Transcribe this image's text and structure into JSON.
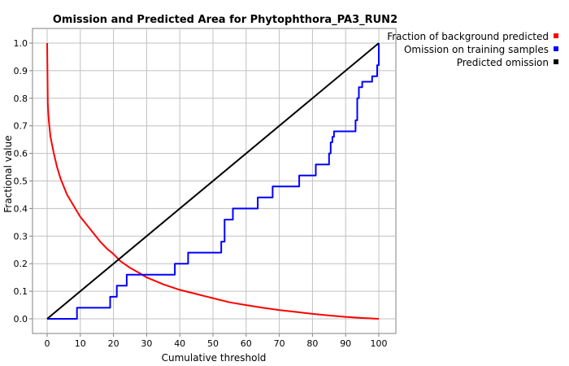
{
  "chart_data": {
    "type": "line",
    "title": "Omission and Predicted Area for Phytophthora_PA3_RUN2",
    "xlabel": "Cumulative threshold",
    "ylabel": "Fractional value",
    "xlim": [
      0,
      100
    ],
    "ylim": [
      0,
      1.0
    ],
    "xticks": [
      0,
      10,
      20,
      30,
      40,
      50,
      60,
      70,
      80,
      90,
      100
    ],
    "yticks": [
      0.0,
      0.1,
      0.2,
      0.3,
      0.4,
      0.5,
      0.6,
      0.7,
      0.8,
      0.9,
      1.0
    ],
    "xtick_labels": [
      "0",
      "10",
      "20",
      "30",
      "40",
      "50",
      "60",
      "70",
      "80",
      "90",
      "100"
    ],
    "ytick_labels": [
      "0.0",
      "0.1",
      "0.2",
      "0.3",
      "0.4",
      "0.5",
      "0.6",
      "0.7",
      "0.8",
      "0.9",
      "1.0"
    ],
    "grid": true,
    "legend_position": "top-right-outside",
    "series": [
      {
        "name": "Fraction of background predicted",
        "color": "#ff0000",
        "x": [
          0,
          0.2,
          0.5,
          1,
          2,
          3,
          4,
          5,
          6,
          8,
          10,
          12,
          14,
          16,
          18,
          20,
          22,
          25,
          28,
          30,
          35,
          40,
          45,
          50,
          55,
          60,
          65,
          70,
          75,
          80,
          85,
          90,
          95,
          100
        ],
        "y": [
          1.0,
          0.78,
          0.72,
          0.66,
          0.6,
          0.55,
          0.51,
          0.48,
          0.45,
          0.41,
          0.37,
          0.34,
          0.31,
          0.28,
          0.255,
          0.235,
          0.21,
          0.185,
          0.165,
          0.15,
          0.125,
          0.105,
          0.09,
          0.075,
          0.06,
          0.05,
          0.04,
          0.032,
          0.025,
          0.018,
          0.012,
          0.007,
          0.003,
          0.0
        ]
      },
      {
        "name": "Omission on training samples",
        "color": "#0000ff",
        "step": true,
        "x": [
          0,
          9,
          19,
          21,
          24,
          38.5,
          42.5,
          52.5,
          53.5,
          56,
          63.5,
          68,
          76,
          81,
          85,
          85.5,
          86,
          86.5,
          93,
          93.5,
          94,
          95,
          98,
          99.5,
          100
        ],
        "y": [
          0.0,
          0.04,
          0.08,
          0.12,
          0.16,
          0.2,
          0.24,
          0.28,
          0.36,
          0.4,
          0.44,
          0.48,
          0.52,
          0.56,
          0.6,
          0.64,
          0.66,
          0.68,
          0.72,
          0.8,
          0.84,
          0.86,
          0.88,
          0.92,
          1.0
        ]
      },
      {
        "name": "Predicted omission",
        "color": "#000000",
        "x": [
          0,
          100
        ],
        "y": [
          0.0,
          1.0
        ]
      }
    ]
  }
}
